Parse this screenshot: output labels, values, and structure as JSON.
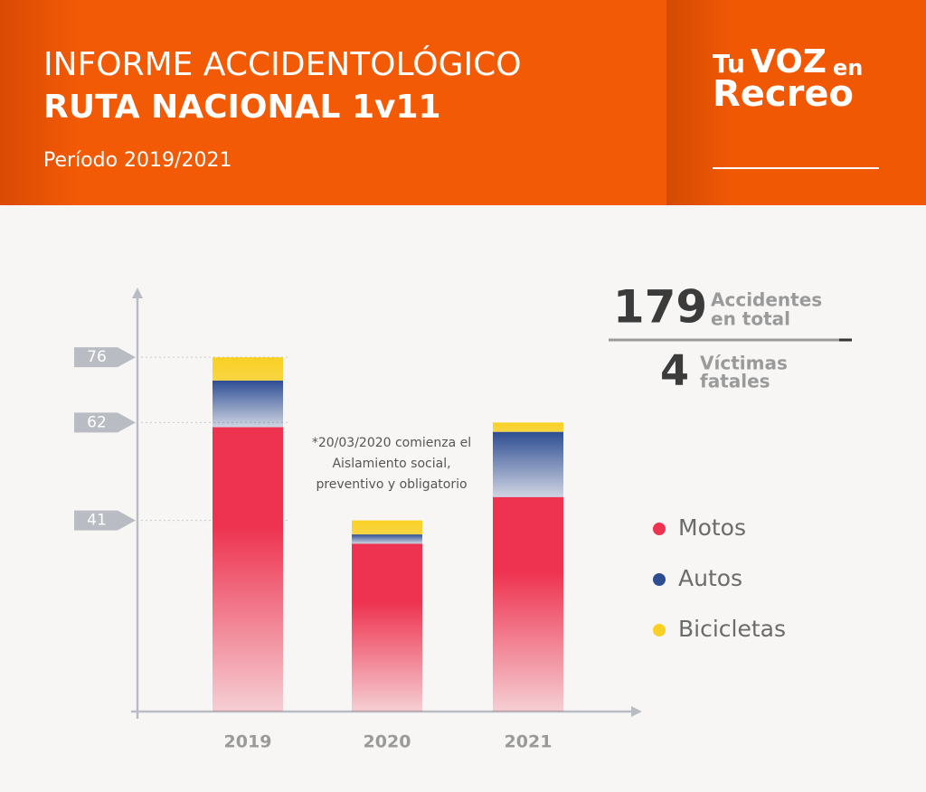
{
  "header": {
    "title_line_1": "INFORME ACCIDENTOLÓGICO",
    "title_line_2": "RUTA NACIONAL 1v11",
    "subtitle": "Período 2019/2021",
    "logo": {
      "part_1": "Tu",
      "part_2": "VOZ",
      "part_3": "en",
      "part_4": "Recreo"
    }
  },
  "stats": {
    "accidents": 179,
    "accidents_label_1": "Accidentes",
    "accidents_label_2": "en total",
    "deaths": 4,
    "deaths_label_1": "Víctimas",
    "deaths_label_2": "fatales"
  },
  "chart_data": {
    "type": "stacked-bar",
    "categories": [
      "2019",
      "2020",
      "2021"
    ],
    "series": [
      {
        "name": "Motos",
        "color": "#ee3350",
        "values": [
          61,
          36,
          46
        ]
      },
      {
        "name": "Autos",
        "color": "#2e4e93",
        "values": [
          10,
          2,
          14
        ]
      },
      {
        "name": "Bicicletas",
        "color": "#f9d023",
        "values": [
          5,
          3,
          2
        ]
      }
    ],
    "ylim": [
      0,
      90
    ],
    "yticks": [
      41,
      62,
      76
    ],
    "annotation": [
      "*20/03/2020  comienza el",
      "Aislamiento social,",
      "preventivo y obligatorio"
    ]
  }
}
